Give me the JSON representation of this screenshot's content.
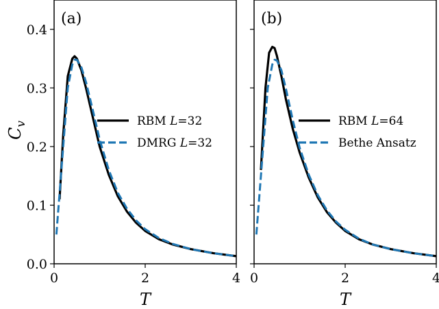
{
  "chart_data": [
    {
      "type": "line",
      "panel_label": "(a)",
      "xlabel": "T",
      "ylabel": "C_v",
      "xlim": [
        0,
        4
      ],
      "ylim": [
        0,
        0.45
      ],
      "xticks": [
        0,
        2,
        4
      ],
      "yticks": [
        0.0,
        0.1,
        0.2,
        0.3,
        0.4
      ],
      "xtick_labels": [
        "0",
        "2",
        "4"
      ],
      "ytick_labels": [
        "0.0",
        "0.1",
        "0.2",
        "0.3",
        "0.4"
      ],
      "legend_position": "center-right",
      "series": [
        {
          "name": "RBM L=32",
          "legend_prefix": "RBM ",
          "legend_var": "L",
          "legend_suffix": "=32",
          "color": "#000000",
          "style": "solid",
          "x": [
            0.12,
            0.2,
            0.3,
            0.4,
            0.45,
            0.5,
            0.6,
            0.7,
            0.85,
            1.0,
            1.2,
            1.4,
            1.6,
            1.8,
            2.0,
            2.3,
            2.6,
            3.0,
            3.5,
            4.0
          ],
          "y": [
            0.11,
            0.22,
            0.32,
            0.35,
            0.354,
            0.35,
            0.33,
            0.3,
            0.25,
            0.2,
            0.152,
            0.115,
            0.089,
            0.07,
            0.056,
            0.042,
            0.033,
            0.025,
            0.018,
            0.013
          ]
        },
        {
          "name": "DMRG L=32",
          "legend_prefix": "DMRG ",
          "legend_var": "L",
          "legend_suffix": "=32",
          "color": "#1f77b4",
          "style": "dashed",
          "x": [
            0.05,
            0.1,
            0.2,
            0.3,
            0.4,
            0.45,
            0.5,
            0.6,
            0.7,
            0.85,
            1.0,
            1.2,
            1.4,
            1.6,
            1.8,
            2.0,
            2.3,
            2.6,
            3.0,
            3.5,
            4.0
          ],
          "y": [
            0.05,
            0.1,
            0.2,
            0.3,
            0.34,
            0.348,
            0.348,
            0.335,
            0.31,
            0.262,
            0.212,
            0.16,
            0.121,
            0.094,
            0.074,
            0.059,
            0.044,
            0.034,
            0.025,
            0.018,
            0.013
          ]
        }
      ]
    },
    {
      "type": "line",
      "panel_label": "(b)",
      "xlabel": "T",
      "ylabel": "",
      "xlim": [
        0,
        4
      ],
      "ylim": [
        0,
        0.45
      ],
      "xticks": [
        0,
        2,
        4
      ],
      "yticks": [
        0.0,
        0.1,
        0.2,
        0.3,
        0.4
      ],
      "xtick_labels": [
        "0",
        "2",
        "4"
      ],
      "ytick_labels": [],
      "legend_position": "center-right",
      "series": [
        {
          "name": "RBM L=64",
          "legend_prefix": "RBM ",
          "legend_var": "L",
          "legend_suffix": "=64",
          "color": "#000000",
          "style": "solid",
          "x": [
            0.15,
            0.25,
            0.33,
            0.4,
            0.45,
            0.5,
            0.6,
            0.7,
            0.85,
            1.0,
            1.2,
            1.4,
            1.6,
            1.8,
            2.0,
            2.3,
            2.6,
            3.0,
            3.5,
            4.0
          ],
          "y": [
            0.16,
            0.3,
            0.36,
            0.37,
            0.368,
            0.355,
            0.32,
            0.28,
            0.23,
            0.19,
            0.147,
            0.113,
            0.088,
            0.07,
            0.056,
            0.042,
            0.033,
            0.025,
            0.018,
            0.013
          ]
        },
        {
          "name": "Bethe Ansatz",
          "legend_prefix": "Bethe Ansatz",
          "legend_var": "",
          "legend_suffix": "",
          "color": "#1f77b4",
          "style": "dashed",
          "x": [
            0.05,
            0.1,
            0.2,
            0.3,
            0.4,
            0.45,
            0.5,
            0.6,
            0.7,
            0.85,
            1.0,
            1.2,
            1.4,
            1.6,
            1.8,
            2.0,
            2.3,
            2.6,
            3.0,
            3.5,
            4.0
          ],
          "y": [
            0.05,
            0.1,
            0.2,
            0.3,
            0.34,
            0.348,
            0.347,
            0.33,
            0.298,
            0.245,
            0.198,
            0.152,
            0.117,
            0.091,
            0.072,
            0.058,
            0.043,
            0.033,
            0.025,
            0.018,
            0.013
          ]
        }
      ]
    }
  ]
}
